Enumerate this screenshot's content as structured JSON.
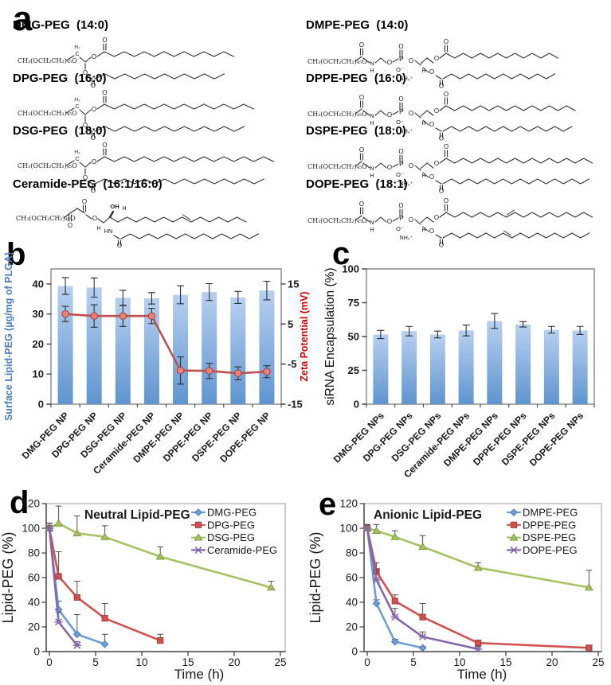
{
  "panel_letters": {
    "a": "a",
    "b": "b",
    "c": "c",
    "d": "d",
    "e": "e"
  },
  "atoms": {
    "o": "O",
    "o_minus": "O⁻",
    "p": "P",
    "n": "N",
    "h": "H",
    "h2": "H₂",
    "c": "C",
    "oh": "OH",
    "hn": "HN",
    "nh4": "NH₄⁺"
  },
  "panel_a": {
    "lipids": [
      {
        "name": "DMG-PEG",
        "tail": "14:0",
        "formula": "CH₃(OCH₂CH₂)₄₅O",
        "type": "glycerol",
        "segments": 13,
        "col": 0,
        "row": 0
      },
      {
        "name": "DMPE-PEG",
        "tail": "14:0",
        "formula": "CH₃(OCH₂CH₂)₄₅O",
        "type": "pe",
        "segments": 13,
        "col": 1,
        "row": 0
      },
      {
        "name": "DPG-PEG",
        "tail": "16:0",
        "formula": "CH₃(OCH₂CH₂)₄₅O",
        "type": "glycerol",
        "segments": 15,
        "col": 0,
        "row": 1
      },
      {
        "name": "DPPE-PEG",
        "tail": "16:0",
        "formula": "CH₃(OCH₂CH₂)₄₅O",
        "type": "pe",
        "segments": 15,
        "col": 1,
        "row": 1
      },
      {
        "name": "DSG-PEG",
        "tail": "18:0",
        "formula": "CH₃(OCH₂CH₂)₄₅O",
        "type": "glycerol",
        "segments": 17,
        "col": 0,
        "row": 2
      },
      {
        "name": "DSPE-PEG",
        "tail": "18:0",
        "formula": "CH₃(OCH₂CH₂)₄₅O",
        "type": "pe",
        "segments": 17,
        "col": 1,
        "row": 2
      },
      {
        "name": "Ceramide-PEG",
        "tail": "16:1/16:0",
        "formula": "CH₃(OCH₂CH₂)₄₅O",
        "type": "ceramide",
        "segments": 15,
        "col": 0,
        "row": 3
      },
      {
        "name": "DOPE-PEG",
        "tail": "18:1",
        "formula": "CH₃(OCH₂CH₂)₄₅O",
        "type": "pe",
        "segments": 17,
        "unsat": true,
        "col": 1,
        "row": 3
      }
    ]
  },
  "colors": {
    "bar_top": "#b7d0f0",
    "bar_bottom": "#5f95d0",
    "zeta_line": "#c0504d",
    "zeta_marker": "#ec8278",
    "zeta_edge": "#a23f3c",
    "blue_label": "#4a7ebf",
    "red_label": "#d40000",
    "series": [
      {
        "fill": "#6d9ed9",
        "edge": "#4f7ab0"
      },
      {
        "fill": "#d0514e",
        "edge": "#a03c3a"
      },
      {
        "fill": "#a6c361",
        "edge": "#7e9a41"
      },
      {
        "fill": "#8468aa",
        "edge": "#63487f"
      }
    ]
  },
  "chart_data": [
    {
      "id": "b",
      "type": "bar",
      "ylabel": "Surface Lipid-PEG (µg/mg of PLGA)",
      "y2label": "Zeta Potential (mV)",
      "categories": [
        "DMG-PEG NP",
        "DPG-PEG NP",
        "DSG-PEG NP",
        "Ceramide-PEG NP",
        "DMPE-PEG NP",
        "DPPE-PEG NP",
        "DSPE-PEG NP",
        "DOPE-PEG NP"
      ],
      "bar_values": [
        39.3,
        38.8,
        35.4,
        35.2,
        36.4,
        37.3,
        35.5,
        37.8
      ],
      "bar_errors": [
        2.8,
        3.2,
        2.5,
        1.9,
        3.0,
        2.8,
        2.0,
        3.1
      ],
      "ylim": [
        0,
        45
      ],
      "yticks": [
        0,
        10,
        20,
        30,
        40
      ],
      "line": {
        "name": "Zeta Potential",
        "values": [
          7.5,
          7.0,
          7.0,
          7.0,
          -6.6,
          -6.7,
          -7.3,
          -6.9
        ],
        "errors": [
          1.9,
          2.8,
          2.6,
          1.9,
          3.4,
          1.9,
          1.6,
          1.5
        ]
      },
      "y2lim": [
        -15,
        18.75
      ],
      "y2ticks": [
        15,
        5,
        -5,
        -15
      ],
      "grid": false
    },
    {
      "id": "c",
      "type": "bar",
      "ylabel": "siRNA Encapsulation (%)",
      "categories": [
        "DMG-PEG NPs",
        "DPG-PEG NPs",
        "DSG-PEG NPs",
        "Ceramide-PEG NPs",
        "DMPE-PEG NPs",
        "DPPE-PEG NPs",
        "DSPE-PEG NPs",
        "DOPE-PEG NPs"
      ],
      "bar_values": [
        51.5,
        54.0,
        51.5,
        54.5,
        61.5,
        59.0,
        55.0,
        54.5
      ],
      "bar_errors": [
        3.0,
        3.5,
        2.5,
        4.0,
        5.5,
        2.0,
        2.5,
        3.0
      ],
      "ylim": [
        0,
        100
      ],
      "yticks": [
        0,
        25,
        50,
        75,
        100
      ],
      "grid": false
    },
    {
      "id": "d",
      "type": "line",
      "title": "Neutral Lipid-PEG",
      "xlabel": "Time (h)",
      "ylabel": "Lipid-PEG (%)",
      "xlim": [
        0,
        25
      ],
      "xticks": [
        0,
        5,
        10,
        15,
        20,
        25
      ],
      "ylim": [
        0,
        120
      ],
      "yticks": [
        0,
        20,
        40,
        60,
        80,
        100,
        120
      ],
      "legend_position": "top-right-inside",
      "grid": false,
      "series": [
        {
          "name": "DMG-PEG",
          "marker": "diamond",
          "x": [
            0,
            1,
            3,
            6
          ],
          "y": [
            100,
            34,
            14,
            6
          ],
          "yerr": [
            4,
            7,
            16,
            8
          ]
        },
        {
          "name": "DPG-PEG",
          "marker": "square",
          "x": [
            0,
            1,
            3,
            6,
            12
          ],
          "y": [
            100,
            61,
            44,
            27,
            9
          ],
          "yerr": [
            4,
            20,
            13,
            12,
            5
          ]
        },
        {
          "name": "DSG-PEG",
          "marker": "triangle",
          "x": [
            0,
            1,
            3,
            6,
            12,
            24
          ],
          "y": [
            100,
            104,
            96,
            93,
            77,
            52
          ],
          "yerr": [
            4,
            14,
            14,
            9,
            8,
            5
          ]
        },
        {
          "name": "Ceramide-PEG",
          "marker": "x",
          "x": [
            0,
            1,
            3
          ],
          "y": [
            100,
            24,
            5
          ],
          "yerr": [
            4,
            8,
            3
          ]
        }
      ]
    },
    {
      "id": "e",
      "type": "line",
      "title": "Anionic Lipid-PEG",
      "xlabel": "Time (h)",
      "ylabel": "Lipid-PEG (%)",
      "xlim": [
        0,
        25
      ],
      "xticks": [
        0,
        5,
        10,
        15,
        20,
        25
      ],
      "ylim": [
        0,
        120
      ],
      "yticks": [
        0,
        20,
        40,
        60,
        80,
        100,
        120
      ],
      "legend_position": "top-right-inside",
      "grid": false,
      "series": [
        {
          "name": "DMPE-PEG",
          "marker": "diamond",
          "x": [
            0,
            1,
            3,
            6
          ],
          "y": [
            100,
            39,
            8,
            3
          ],
          "yerr": [
            3,
            3,
            2,
            1
          ]
        },
        {
          "name": "DPPE-PEG",
          "marker": "square",
          "x": [
            0,
            1,
            3,
            6,
            12,
            24
          ],
          "y": [
            100,
            65,
            41,
            28,
            7,
            3
          ],
          "yerr": [
            3,
            7,
            5,
            11,
            2,
            1
          ]
        },
        {
          "name": "DSPE-PEG",
          "marker": "triangle",
          "x": [
            0,
            1,
            3,
            6,
            12,
            24
          ],
          "y": [
            100,
            98,
            93,
            85,
            68,
            52
          ],
          "yerr": [
            3,
            5,
            5,
            9,
            4,
            14
          ]
        },
        {
          "name": "DOPE-PEG",
          "marker": "x",
          "x": [
            0,
            1,
            3,
            6,
            12
          ],
          "y": [
            100,
            58,
            28,
            12,
            2
          ],
          "yerr": [
            3,
            8,
            7,
            4,
            2
          ]
        }
      ]
    }
  ]
}
